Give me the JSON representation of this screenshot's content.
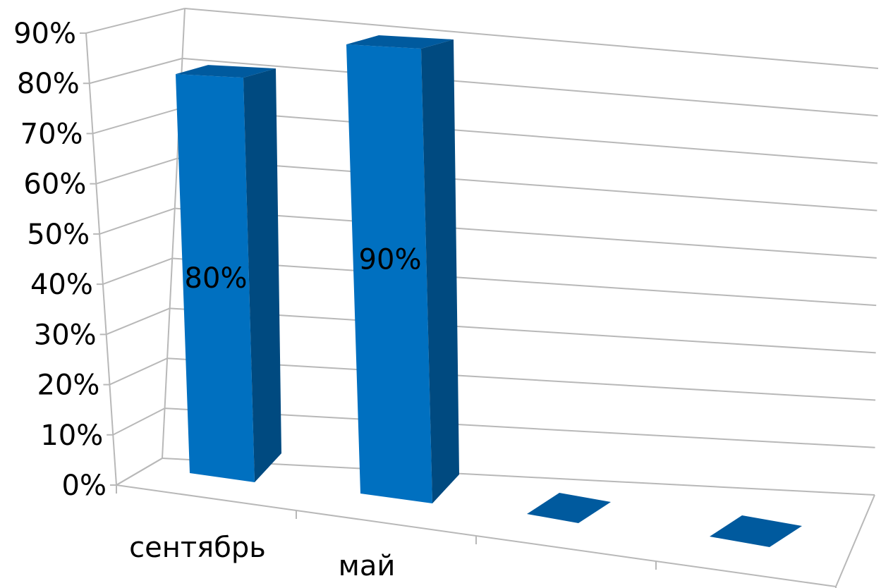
{
  "chart_data": {
    "type": "bar",
    "style": "3d-column",
    "categories": [
      "сентябрь",
      "май",
      "",
      ""
    ],
    "values": [
      0.8,
      0.9,
      0,
      0
    ],
    "data_labels": [
      "80%",
      "90%",
      "",
      ""
    ],
    "ylim": [
      0,
      0.9
    ],
    "yticks": [
      "0%",
      "10%",
      "20%",
      "30%",
      "40%",
      "50%",
      "60%",
      "70%",
      "80%",
      "90%"
    ],
    "grid": true,
    "legend": "none",
    "colors": {
      "bar_front": "#0070c0",
      "bar_side": "#004a80",
      "bar_top": "#005a9e",
      "gridline": "#b8b8b8"
    }
  }
}
